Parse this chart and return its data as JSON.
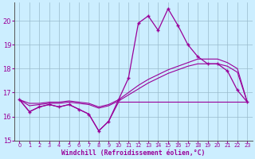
{
  "x": [
    0,
    1,
    2,
    3,
    4,
    5,
    6,
    7,
    8,
    9,
    10,
    11,
    12,
    13,
    14,
    15,
    16,
    17,
    18,
    19,
    20,
    21,
    22,
    23
  ],
  "windchill": [
    16.7,
    16.2,
    16.4,
    16.5,
    16.4,
    16.5,
    16.3,
    16.1,
    15.4,
    15.8,
    16.7,
    17.6,
    19.9,
    20.2,
    19.6,
    20.5,
    19.8,
    19.0,
    18.5,
    18.2,
    18.2,
    17.9,
    17.1,
    16.6
  ],
  "flat_line": [
    16.7,
    16.2,
    16.4,
    16.5,
    16.4,
    16.5,
    16.3,
    16.1,
    15.4,
    15.8,
    16.6,
    16.6,
    16.6,
    16.6,
    16.6,
    16.6,
    16.6,
    16.6,
    16.6,
    16.6,
    16.6,
    16.6,
    16.6,
    16.6
  ],
  "trend1": [
    16.7,
    16.55,
    16.55,
    16.6,
    16.6,
    16.65,
    16.6,
    16.55,
    16.4,
    16.5,
    16.7,
    17.0,
    17.3,
    17.55,
    17.75,
    17.95,
    18.1,
    18.25,
    18.4,
    18.4,
    18.4,
    18.25,
    18.0,
    16.6
  ],
  "trend2": [
    16.7,
    16.45,
    16.5,
    16.55,
    16.55,
    16.6,
    16.55,
    16.5,
    16.35,
    16.45,
    16.65,
    16.9,
    17.15,
    17.4,
    17.6,
    17.8,
    17.95,
    18.1,
    18.2,
    18.2,
    18.2,
    18.1,
    17.85,
    16.6
  ],
  "bg_color": "#cceeff",
  "line_color": "#990099",
  "grid_color": "#99bbcc",
  "ylim": [
    15.0,
    20.75
  ],
  "yticks": [
    15,
    16,
    17,
    18,
    19,
    20
  ],
  "xlabel": "Windchill (Refroidissement éolien,°C)"
}
